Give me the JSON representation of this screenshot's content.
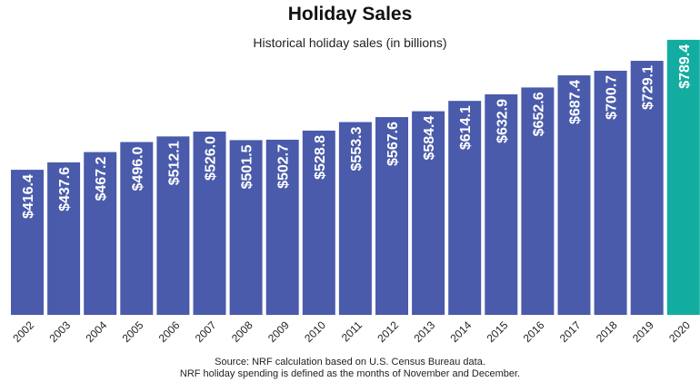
{
  "chart_data": {
    "type": "bar",
    "title": "Holiday Sales",
    "subtitle": "Historical holiday sales (in billions)",
    "categories": [
      "2002",
      "2003",
      "2004",
      "2005",
      "2006",
      "2007",
      "2008",
      "2009",
      "2010",
      "2011",
      "2012",
      "2013",
      "2014",
      "2015",
      "2016",
      "2017",
      "2018",
      "2019",
      "2020"
    ],
    "values": [
      416.4,
      437.6,
      467.2,
      496.0,
      512.1,
      526.0,
      501.5,
      502.7,
      528.8,
      553.3,
      567.6,
      584.4,
      614.1,
      632.9,
      652.6,
      687.4,
      700.7,
      729.1,
      789.4
    ],
    "data_labels": [
      "$416.4",
      "$437.6",
      "$467.2",
      "$496.0",
      "$512.1",
      "$526.0",
      "$501.5",
      "$502.7",
      "$528.8",
      "$553.3",
      "$567.6",
      "$584.4",
      "$614.1",
      "$632.9",
      "$652.6",
      "$687.4",
      "$700.7",
      "$729.1",
      "$789.4"
    ],
    "colors": {
      "default": "#4a5bab",
      "highlight": "#12ada0"
    },
    "highlight_category": "2020",
    "ylim": [
      0,
      800
    ],
    "grid": false,
    "xlabel": "",
    "ylabel": ""
  },
  "source": {
    "line1": "Source: NRF calculation based on U.S. Census Bureau data.",
    "line2": "NRF holiday spending is defined as the months of November and December."
  }
}
